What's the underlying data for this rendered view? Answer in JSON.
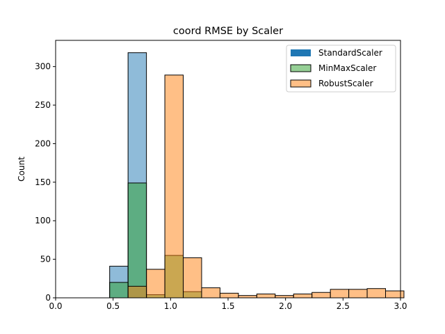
{
  "chart_data": {
    "type": "bar",
    "title": "coord RMSE by Scaler",
    "xlabel": "",
    "ylabel": "Count",
    "xlim": [
      0.0,
      3.0
    ],
    "ylim": [
      0,
      334
    ],
    "xticks": [
      0.0,
      0.5,
      1.0,
      1.5,
      2.0,
      2.5,
      3.0
    ],
    "xtick_labels": [
      "0.0",
      "0.5",
      "1.0",
      "1.5",
      "2.0",
      "2.5",
      "3.0"
    ],
    "yticks": [
      0,
      50,
      100,
      150,
      200,
      250,
      300
    ],
    "ytick_labels": [
      "0",
      "50",
      "100",
      "150",
      "200",
      "250",
      "300"
    ],
    "grid": false,
    "legend_position": "top-right",
    "bin_width": 0.16,
    "series": [
      {
        "name": "StandardScaler",
        "color": "#1f77b4",
        "bins": [
          {
            "x0": 0.47,
            "count": 41
          },
          {
            "x0": 0.63,
            "count": 318
          }
        ]
      },
      {
        "name": "MinMaxScaler",
        "color": "#2ca02c",
        "bins": [
          {
            "x0": 0.47,
            "count": 20
          },
          {
            "x0": 0.63,
            "count": 149
          },
          {
            "x0": 0.79,
            "count": 4
          },
          {
            "x0": 0.95,
            "count": 55
          },
          {
            "x0": 1.11,
            "count": 8
          }
        ]
      },
      {
        "name": "RobustScaler",
        "color": "#ff7f0e",
        "bins": [
          {
            "x0": 0.63,
            "count": 15
          },
          {
            "x0": 0.79,
            "count": 37
          },
          {
            "x0": 0.95,
            "count": 289
          },
          {
            "x0": 1.11,
            "count": 52
          },
          {
            "x0": 1.27,
            "count": 13
          },
          {
            "x0": 1.43,
            "count": 6
          },
          {
            "x0": 1.59,
            "count": 3
          },
          {
            "x0": 1.75,
            "count": 5
          },
          {
            "x0": 1.91,
            "count": 3
          },
          {
            "x0": 2.07,
            "count": 5
          },
          {
            "x0": 2.23,
            "count": 7
          },
          {
            "x0": 2.39,
            "count": 11
          },
          {
            "x0": 2.55,
            "count": 11
          },
          {
            "x0": 2.71,
            "count": 12
          },
          {
            "x0": 2.87,
            "count": 9
          }
        ]
      }
    ]
  }
}
